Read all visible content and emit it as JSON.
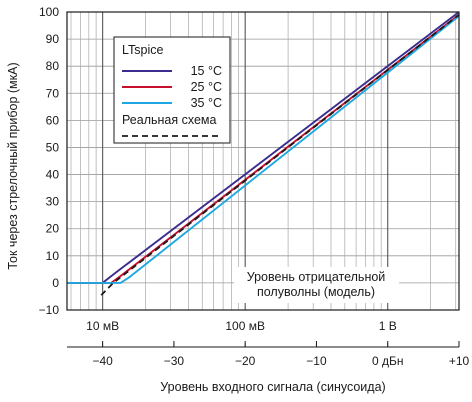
{
  "chart_data": {
    "type": "line",
    "xlabel": "Уровень входного сигнала (синусоида)",
    "ylabel": "Ток через стрелочный прибор (мкА)",
    "xlim": [
      -45,
      10
    ],
    "ylim": [
      -10,
      100
    ],
    "x_scale": "log",
    "x_ticks": [
      -40,
      -30,
      -20,
      -10,
      0,
      10
    ],
    "x_tick_labels": [
      "−40",
      "−30",
      "−20",
      "−10",
      "0 дБн",
      "+10"
    ],
    "top_ticks": [
      {
        "x": -40,
        "label": "10 мВ"
      },
      {
        "x": -20,
        "label": "100 мВ"
      },
      {
        "x": 0,
        "label": "1 В"
      }
    ],
    "y_ticks": [
      -10,
      0,
      10,
      20,
      30,
      40,
      50,
      60,
      70,
      80,
      90,
      100
    ],
    "y_tick_labels": [
      "−10",
      "0",
      "10",
      "20",
      "30",
      "40",
      "50",
      "60",
      "70",
      "80",
      "90",
      "100"
    ],
    "grid": true,
    "legend": {
      "title": "LTspice",
      "position": "top-left",
      "entries": [
        {
          "label": "15 °C",
          "color": "#3a2d8f",
          "style": "solid"
        },
        {
          "label": "25 °C",
          "color": "#c8102e",
          "style": "solid"
        },
        {
          "label": "35 °C",
          "color": "#1ea7e1",
          "style": "solid"
        }
      ],
      "extra_label": "Реальная схема",
      "extra_style": "dashed",
      "extra_color": "#1a1a1a"
    },
    "annotation": {
      "lines": [
        "Уровень отрицательной",
        "полуволны (модель)"
      ]
    },
    "series": [
      {
        "name": "15 °C",
        "color": "#3a2d8f",
        "style": "solid",
        "x": [
          -45,
          -40,
          -38.3,
          10
        ],
        "y": [
          0,
          0,
          3.5,
          100
        ]
      },
      {
        "name": "25 °C",
        "color": "#c8102e",
        "style": "solid",
        "x": [
          -45,
          -38.8,
          -37.5,
          10
        ],
        "y": [
          0,
          0,
          2.5,
          99
        ]
      },
      {
        "name": "35 °C",
        "color": "#1ea7e1",
        "style": "solid",
        "x": [
          -45,
          -37.5,
          -36.3,
          10
        ],
        "y": [
          0,
          0,
          2,
          98.5
        ]
      },
      {
        "name": "Реальная схема",
        "color": "#1a1a1a",
        "style": "dashed",
        "x": [
          -40.2,
          -38.5,
          10
        ],
        "y": [
          -4.5,
          0,
          99
        ]
      }
    ]
  }
}
